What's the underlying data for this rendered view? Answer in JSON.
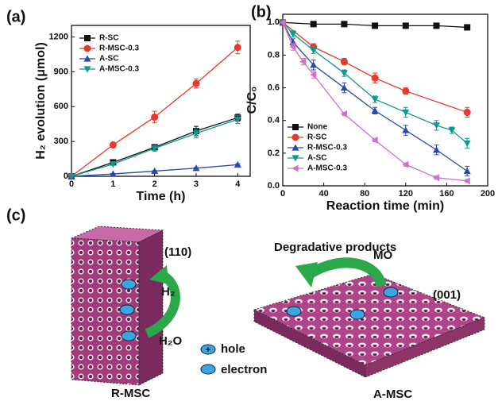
{
  "chart_data": [
    {
      "type": "line",
      "panel_label": "(a)",
      "xlabel": "Time (h)",
      "ylabel": "H₂ evolution (μmol)",
      "x": [
        0,
        1,
        2,
        3,
        4
      ],
      "xlim": [
        0,
        4.3
      ],
      "xticks": [
        0,
        1,
        2,
        3,
        4
      ],
      "ylim": [
        0,
        1300
      ],
      "yticks": [
        0,
        300,
        600,
        900,
        1200
      ],
      "legend": "upper left",
      "series": [
        {
          "name": "R-SC",
          "color": "#111111",
          "marker": "square",
          "values": [
            0,
            120,
            250,
            390,
            505
          ],
          "errors": [
            0,
            10,
            20,
            40,
            30
          ]
        },
        {
          "name": "R-MSC-0.3",
          "color": "#e8382b",
          "marker": "circle",
          "values": [
            0,
            270,
            510,
            800,
            1110
          ],
          "errors": [
            0,
            10,
            50,
            40,
            55
          ]
        },
        {
          "name": "A-SC",
          "color": "#2b47b0",
          "marker": "triangle-up",
          "values": [
            0,
            20,
            45,
            70,
            100
          ],
          "errors": [
            0,
            5,
            5,
            5,
            8
          ]
        },
        {
          "name": "A-MSC-0.3",
          "color": "#0a9a8a",
          "marker": "triangle-down",
          "values": [
            0,
            105,
            240,
            370,
            490
          ],
          "errors": [
            0,
            10,
            25,
            40,
            35
          ]
        }
      ]
    },
    {
      "type": "line",
      "panel_label": "(b)",
      "xlabel": "Reaction time (min)",
      "ylabel": "C/C₀",
      "xlim": [
        0,
        200
      ],
      "xticks": [
        0,
        40,
        80,
        120,
        160,
        200
      ],
      "ylim": [
        0,
        1.05
      ],
      "yticks": [
        {
          "value": 0,
          "label": "0.0"
        },
        0.2,
        0.4,
        0.6,
        0.8,
        {
          "value": 1,
          "label": "1.0"
        }
      ],
      "legend": "lower left",
      "series": [
        {
          "name": "None",
          "color": "#111111",
          "marker": "square",
          "x": [
            0,
            30,
            60,
            90,
            120,
            150,
            180
          ],
          "values": [
            1.0,
            0.99,
            0.99,
            0.98,
            0.98,
            0.98,
            0.97
          ],
          "errors": [
            0,
            0.01,
            0.01,
            0.01,
            0.01,
            0.01,
            0.01
          ]
        },
        {
          "name": "R-SC",
          "color": "#e8382b",
          "marker": "circle",
          "x": [
            0,
            30,
            60,
            90,
            120,
            180
          ],
          "values": [
            1.0,
            0.85,
            0.76,
            0.66,
            0.58,
            0.45
          ],
          "errors": [
            0,
            0.02,
            0.02,
            0.03,
            0.02,
            0.03
          ]
        },
        {
          "name": "R-MSC-0.3",
          "color": "#2b47b0",
          "marker": "triangle-up",
          "x": [
            0,
            10,
            30,
            60,
            90,
            120,
            150,
            180
          ],
          "values": [
            1.0,
            0.88,
            0.74,
            0.6,
            0.46,
            0.34,
            0.22,
            0.09
          ],
          "errors": [
            0,
            0.02,
            0.03,
            0.03,
            0.02,
            0.03,
            0.03,
            0.03
          ]
        },
        {
          "name": "A-SC",
          "color": "#0a9a8a",
          "marker": "triangle-down",
          "x": [
            0,
            10,
            30,
            60,
            90,
            120,
            150,
            165,
            180
          ],
          "values": [
            1.0,
            0.93,
            0.83,
            0.69,
            0.53,
            0.45,
            0.37,
            0.34,
            0.26
          ],
          "errors": [
            0,
            0.02,
            0.02,
            0.02,
            0.02,
            0.03,
            0.03,
            0.02,
            0.03
          ]
        },
        {
          "name": "A-MSC-0.3",
          "color": "#d070c8",
          "marker": "triangle-left",
          "x": [
            0,
            10,
            20,
            30,
            60,
            90,
            120,
            150,
            180
          ],
          "values": [
            1.0,
            0.85,
            0.76,
            0.68,
            0.44,
            0.28,
            0.13,
            0.05,
            0.03
          ],
          "errors": [
            0,
            0.02,
            0.02,
            0.02,
            0.01,
            0.01,
            0.01,
            0.01,
            0.01
          ]
        }
      ]
    }
  ],
  "diagram": {
    "panel_label": "(c)",
    "left_facet": "(110)",
    "h2": "H₂",
    "h2o": "H₂O",
    "left_name": "R-MSC",
    "legend": {
      "hole": "hole",
      "electron": "electron"
    },
    "products": "Degradative products",
    "mo": "MO",
    "right_facet": "(001)",
    "right_name": "A-MSC"
  }
}
